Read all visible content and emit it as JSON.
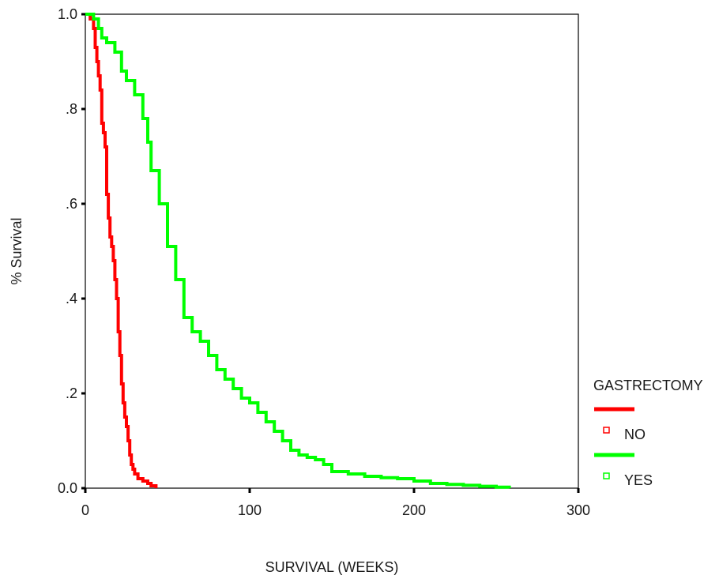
{
  "chart_data": {
    "type": "line",
    "title": "",
    "xlabel": "SURVIVAL (WEEKS)",
    "ylabel": "% Survival",
    "xlim": [
      0,
      300
    ],
    "ylim": [
      0,
      1
    ],
    "x_ticks": [
      0,
      100,
      200,
      300
    ],
    "x_tick_labels": [
      "0",
      "100",
      "200",
      "300"
    ],
    "y_ticks": [
      0,
      0.2,
      0.4,
      0.6,
      0.8,
      1.0
    ],
    "y_tick_labels": [
      "0.0",
      ".2",
      ".4",
      ".6",
      ".8",
      "1.0"
    ],
    "grid": false,
    "step": true,
    "legend": {
      "title": "GASTRECTOMY",
      "position": "right"
    },
    "series": [
      {
        "name": "NO",
        "color": "#ff0000",
        "x": [
          0,
          3,
          5,
          6,
          7,
          8,
          9,
          10,
          11,
          12,
          13,
          14,
          15,
          16,
          17,
          18,
          19,
          20,
          21,
          22,
          23,
          24,
          25,
          26,
          27,
          28,
          29,
          30,
          32,
          35,
          38,
          40,
          43
        ],
        "y": [
          1.0,
          0.99,
          0.97,
          0.93,
          0.9,
          0.87,
          0.84,
          0.77,
          0.75,
          0.72,
          0.62,
          0.57,
          0.53,
          0.51,
          0.48,
          0.44,
          0.4,
          0.33,
          0.28,
          0.22,
          0.18,
          0.15,
          0.13,
          0.1,
          0.07,
          0.05,
          0.04,
          0.03,
          0.02,
          0.015,
          0.01,
          0.005,
          0.0
        ]
      },
      {
        "name": "YES",
        "color": "#00ff00",
        "x": [
          0,
          5,
          8,
          10,
          13,
          18,
          22,
          25,
          30,
          35,
          38,
          40,
          45,
          50,
          55,
          60,
          65,
          70,
          75,
          80,
          85,
          90,
          95,
          100,
          105,
          110,
          115,
          120,
          125,
          130,
          135,
          140,
          145,
          150,
          160,
          170,
          180,
          190,
          200,
          210,
          220,
          230,
          240,
          250,
          258
        ],
        "y": [
          1.0,
          0.99,
          0.97,
          0.95,
          0.94,
          0.92,
          0.88,
          0.86,
          0.83,
          0.78,
          0.73,
          0.67,
          0.6,
          0.51,
          0.44,
          0.36,
          0.33,
          0.31,
          0.28,
          0.25,
          0.23,
          0.21,
          0.19,
          0.18,
          0.16,
          0.14,
          0.12,
          0.1,
          0.08,
          0.07,
          0.065,
          0.06,
          0.05,
          0.035,
          0.03,
          0.025,
          0.022,
          0.02,
          0.015,
          0.01,
          0.008,
          0.006,
          0.004,
          0.002,
          0.0
        ]
      }
    ]
  }
}
